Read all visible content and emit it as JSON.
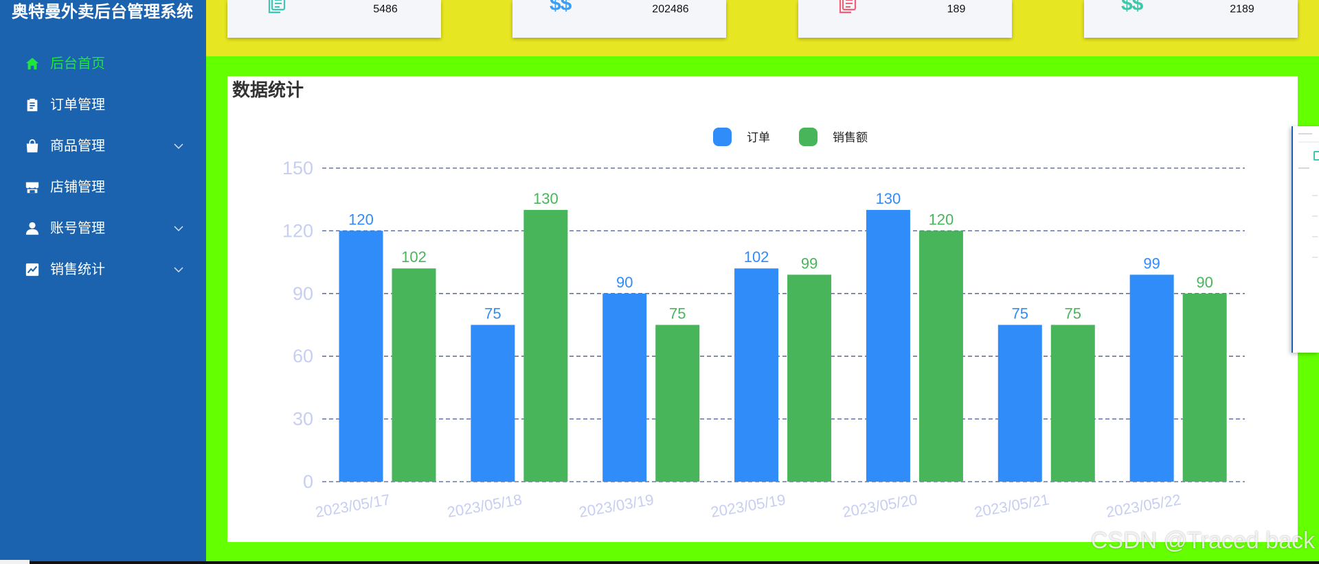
{
  "app": {
    "title": "奥特曼外卖后台管理系统"
  },
  "sidebar": {
    "items": [
      {
        "label": "后台首页",
        "icon": "home-icon",
        "active": true,
        "has_submenu": false
      },
      {
        "label": "订单管理",
        "icon": "clipboard-icon",
        "active": false,
        "has_submenu": false
      },
      {
        "label": "商品管理",
        "icon": "shopping-bag-icon",
        "active": false,
        "has_submenu": true
      },
      {
        "label": "店铺管理",
        "icon": "store-icon",
        "active": false,
        "has_submenu": false
      },
      {
        "label": "账号管理",
        "icon": "user-icon",
        "active": false,
        "has_submenu": true
      },
      {
        "label": "销售统计",
        "icon": "line-chart-icon",
        "active": false,
        "has_submenu": true
      }
    ]
  },
  "stats": [
    {
      "icon": "document-icon",
      "value": "5486",
      "color": "#3ec7b1"
    },
    {
      "icon": "dollar-icon",
      "glyph": "$$",
      "value": "202486",
      "color": "#3b9ef5"
    },
    {
      "icon": "document-icon",
      "value": "189",
      "color": "#f0607a"
    },
    {
      "icon": "dollar-icon",
      "glyph": "$$",
      "value": "2189",
      "color": "#3ec7a9"
    }
  ],
  "panel": {
    "title": "数据统计"
  },
  "chart_data": {
    "type": "bar",
    "categories": [
      "2023/05/17",
      "2023/05/18",
      "2023/03/19",
      "2023/05/19",
      "2023/05/20",
      "2023/05/21",
      "2023/05/22"
    ],
    "series": [
      {
        "name": "订单",
        "color": "#2f8cf9",
        "values": [
          120,
          75,
          90,
          102,
          130,
          75,
          99
        ]
      },
      {
        "name": "销售额",
        "color": "#48b55a",
        "values": [
          102,
          130,
          75,
          99,
          120,
          75,
          90
        ]
      }
    ],
    "ylim": [
      0,
      150
    ],
    "yticks": [
      0,
      30,
      60,
      90,
      120,
      150
    ],
    "grid": true,
    "grid_style": "dashed",
    "grid_color": "#4b5a8c",
    "axis_label_color": "#c6cff3",
    "legend": "top-center",
    "data_labels": true
  },
  "watermark": "CSDN @Traced back",
  "colors": {
    "sidebar": "#1b63ae",
    "active_menu": "#1fe63b",
    "top_band": "#e6e622",
    "content_background": "#64ff00"
  }
}
